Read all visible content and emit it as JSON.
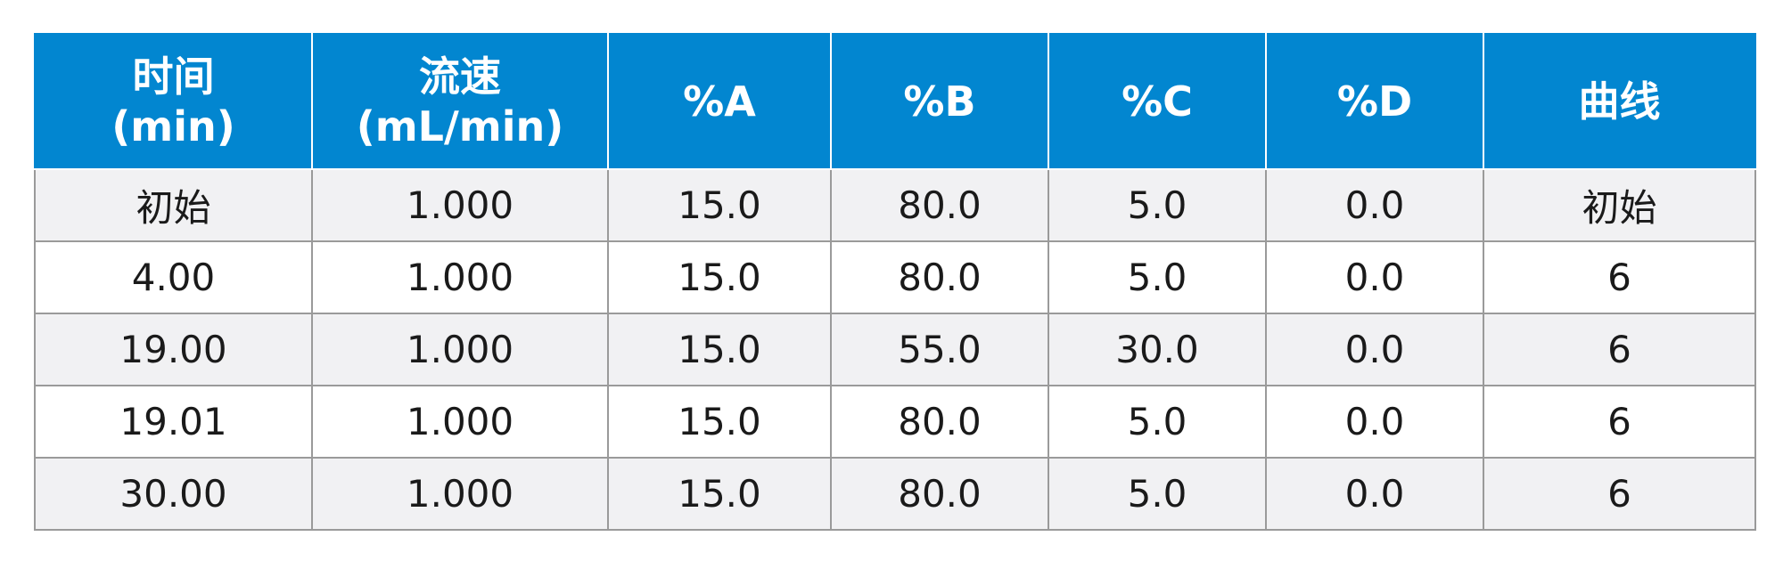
{
  "table": {
    "headers": [
      {
        "line1": "时间",
        "line2": "(min)"
      },
      {
        "line1": "流速",
        "line2": "(mL/min)"
      },
      {
        "line1": "%A",
        "line2": ""
      },
      {
        "line1": "%B",
        "line2": ""
      },
      {
        "line1": "%C",
        "line2": ""
      },
      {
        "line1": "%D",
        "line2": ""
      },
      {
        "line1": "曲线",
        "line2": ""
      }
    ],
    "rows": [
      [
        "初始",
        "1.000",
        "15.0",
        "80.0",
        "5.0",
        "0.0",
        "初始"
      ],
      [
        "4.00",
        "1.000",
        "15.0",
        "80.0",
        "5.0",
        "0.0",
        "6"
      ],
      [
        "19.00",
        "1.000",
        "15.0",
        "55.0",
        "30.0",
        "0.0",
        "6"
      ],
      [
        "19.01",
        "1.000",
        "15.0",
        "80.0",
        "5.0",
        "0.0",
        "6"
      ],
      [
        "30.00",
        "1.000",
        "15.0",
        "80.0",
        "5.0",
        "0.0",
        "6"
      ]
    ]
  },
  "colors": {
    "header_bg": "#0286d0",
    "header_text": "#ffffff",
    "row_alt_bg": "#f1f1f3",
    "border": "#9a9a9a"
  }
}
